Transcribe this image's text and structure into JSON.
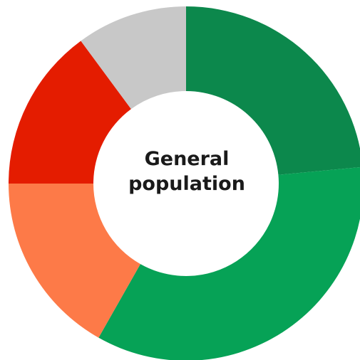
{
  "chart_data": {
    "type": "pie",
    "style": "donut",
    "center_label": "General\npopulation",
    "start_angle_deg": 0,
    "direction": "clockwise",
    "slices": [
      {
        "label": "",
        "value": 23.5,
        "color": "#0c884c"
      },
      {
        "label": "",
        "value": 34.7,
        "color": "#06a256"
      },
      {
        "label": "",
        "value": 16.8,
        "color": "#fd7a48"
      },
      {
        "label": "",
        "value": 14.9,
        "color": "#e41c00"
      },
      {
        "label": "",
        "value": 10.1,
        "color": "#c8c8c8"
      }
    ],
    "legend": "none",
    "grid": false
  }
}
